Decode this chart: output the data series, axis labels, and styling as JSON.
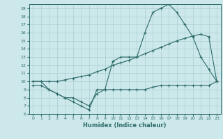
{
  "xlabel": "Humidex (Indice chaleur)",
  "bg_color": "#cce8ea",
  "line_color": "#2e6b6b",
  "grid_color": "#aacfcf",
  "xlim": [
    -0.5,
    23.5
  ],
  "ylim": [
    6,
    19.5
  ],
  "xticks": [
    0,
    1,
    2,
    3,
    4,
    5,
    6,
    7,
    8,
    9,
    10,
    11,
    12,
    13,
    14,
    15,
    16,
    17,
    18,
    19,
    20,
    21,
    22,
    23
  ],
  "yticks": [
    6,
    7,
    8,
    9,
    10,
    11,
    12,
    13,
    14,
    15,
    16,
    17,
    18,
    19
  ],
  "line1_x": [
    0,
    1,
    2,
    3,
    4,
    5,
    6,
    7,
    8,
    9,
    10,
    11,
    12,
    13,
    14,
    15,
    16,
    17,
    18,
    19,
    20,
    21,
    22,
    23
  ],
  "line1_y": [
    10,
    10,
    9,
    8.5,
    8,
    7.5,
    7,
    6.5,
    9,
    9,
    12.5,
    13,
    13,
    13,
    16,
    18.5,
    19,
    19.5,
    18.5,
    17,
    15.5,
    13,
    11.5,
    10
  ],
  "line2_x": [
    0,
    1,
    2,
    3,
    4,
    5,
    6,
    7,
    8,
    9,
    10,
    11,
    12,
    13,
    14,
    15,
    16,
    17,
    18,
    19,
    20,
    21,
    22,
    23
  ],
  "line2_y": [
    10,
    10,
    10,
    10,
    10.2,
    10.4,
    10.6,
    10.8,
    11.2,
    11.5,
    12,
    12.3,
    12.6,
    13,
    13.4,
    13.8,
    14.2,
    14.6,
    15,
    15.3,
    15.6,
    15.8,
    15.5,
    10
  ],
  "line3_x": [
    0,
    1,
    2,
    3,
    4,
    5,
    6,
    7,
    8,
    9,
    10,
    11,
    12,
    13,
    14,
    15,
    16,
    17,
    18,
    19,
    20,
    21,
    22,
    23
  ],
  "line3_y": [
    9.5,
    9.5,
    9,
    8.5,
    8,
    8,
    7.5,
    7,
    8.5,
    9,
    9,
    9,
    9,
    9,
    9,
    9.3,
    9.5,
    9.5,
    9.5,
    9.5,
    9.5,
    9.5,
    9.5,
    10
  ]
}
